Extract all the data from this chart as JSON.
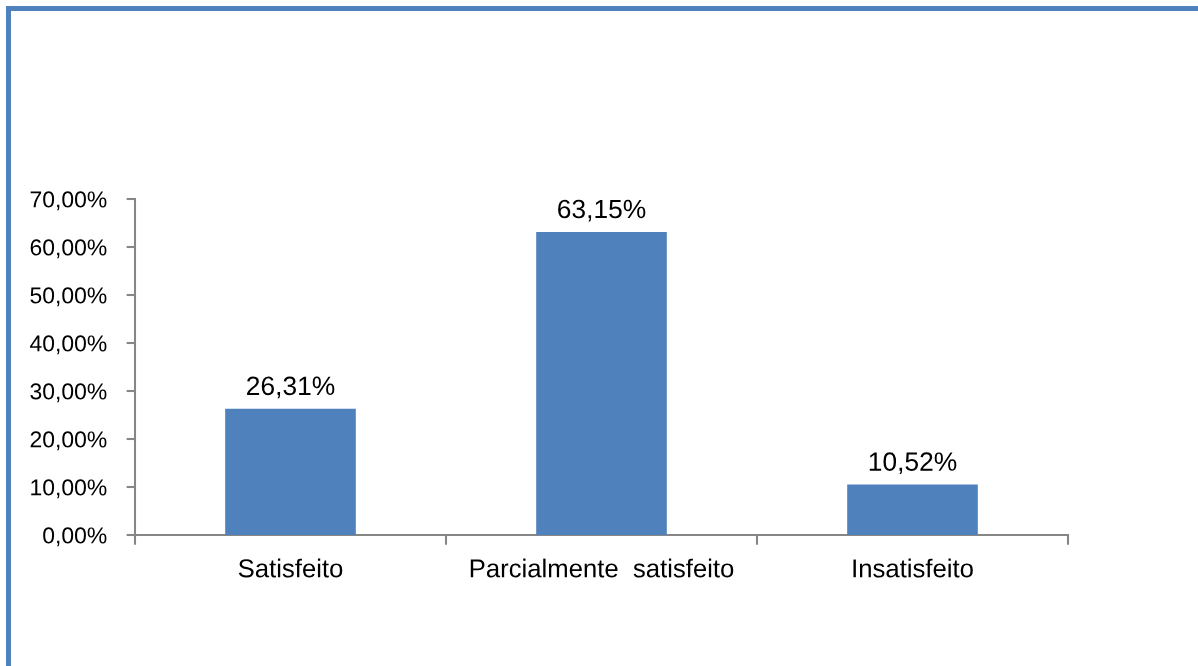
{
  "chart_data": {
    "type": "bar",
    "categories": [
      "Satisfeito",
      "Parcialmente  satisfeito",
      "Insatisfeito"
    ],
    "values": [
      26.31,
      63.15,
      10.52
    ],
    "color": "#4f81bd",
    "value_labels": [
      "26,31%",
      "63,15%",
      "10,52%"
    ],
    "ylim": [
      0,
      70
    ],
    "yticks": [
      {
        "value": 0,
        "label": "0,00%"
      },
      {
        "value": 10,
        "label": "10,00%"
      },
      {
        "value": 20,
        "label": "20,00%"
      },
      {
        "value": 30,
        "label": "30,00%"
      },
      {
        "value": 40,
        "label": "40,00%"
      },
      {
        "value": 50,
        "label": "50,00%"
      },
      {
        "value": 60,
        "label": "60,00%"
      },
      {
        "value": 70,
        "label": "70,00%"
      }
    ]
  }
}
